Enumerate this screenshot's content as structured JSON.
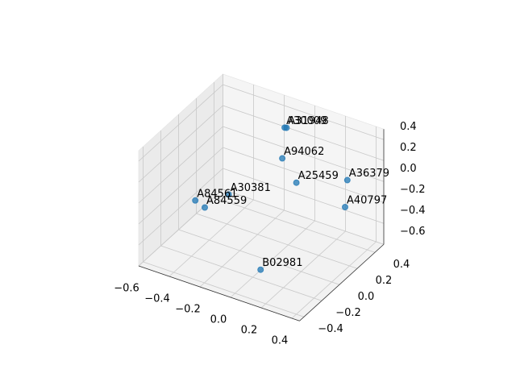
{
  "chart_data": {
    "type": "scatter3d",
    "labels": [
      "A31948",
      "A30009",
      "A94062",
      "A25459",
      "A36379",
      "A40797",
      "A30381",
      "A84561",
      "A84559",
      "B02981"
    ],
    "x": [
      -0.04,
      -0.11,
      -0.01,
      0.14,
      0.27,
      0.4,
      -0.36,
      -0.52,
      -0.4,
      0.08
    ],
    "y": [
      0.25,
      0.35,
      0.15,
      0.05,
      0.4,
      0.15,
      0.15,
      0.05,
      -0.05,
      -0.25
    ],
    "z": [
      0.46,
      0.35,
      0.26,
      0.18,
      0.0,
      0.0,
      -0.26,
      -0.32,
      -0.25,
      -0.45
    ],
    "color": "#1f77b4",
    "xlim": [
      -0.6,
      0.45
    ],
    "ylim": [
      -0.45,
      0.5
    ],
    "zlim": [
      -0.6,
      0.5
    ],
    "xticks": [
      {
        "value": -0.6,
        "label": "−0.6"
      },
      {
        "value": -0.4,
        "label": "−0.4"
      },
      {
        "value": -0.2,
        "label": "−0.2"
      },
      {
        "value": 0,
        "label": "0.0"
      },
      0.2,
      0.4
    ],
    "yticks": [
      {
        "value": -0.4,
        "label": "−0.4"
      },
      {
        "value": -0.2,
        "label": "−0.2"
      },
      {
        "value": 0,
        "label": "0.0"
      },
      0.2,
      0.4
    ],
    "zticks": [
      {
        "value": -0.6,
        "label": "−0.6"
      },
      {
        "value": -0.4,
        "label": "−0.4"
      },
      {
        "value": -0.2,
        "label": "−0.2"
      },
      {
        "value": 0,
        "label": "0.0"
      },
      0.2,
      0.4
    ],
    "grid": true
  }
}
